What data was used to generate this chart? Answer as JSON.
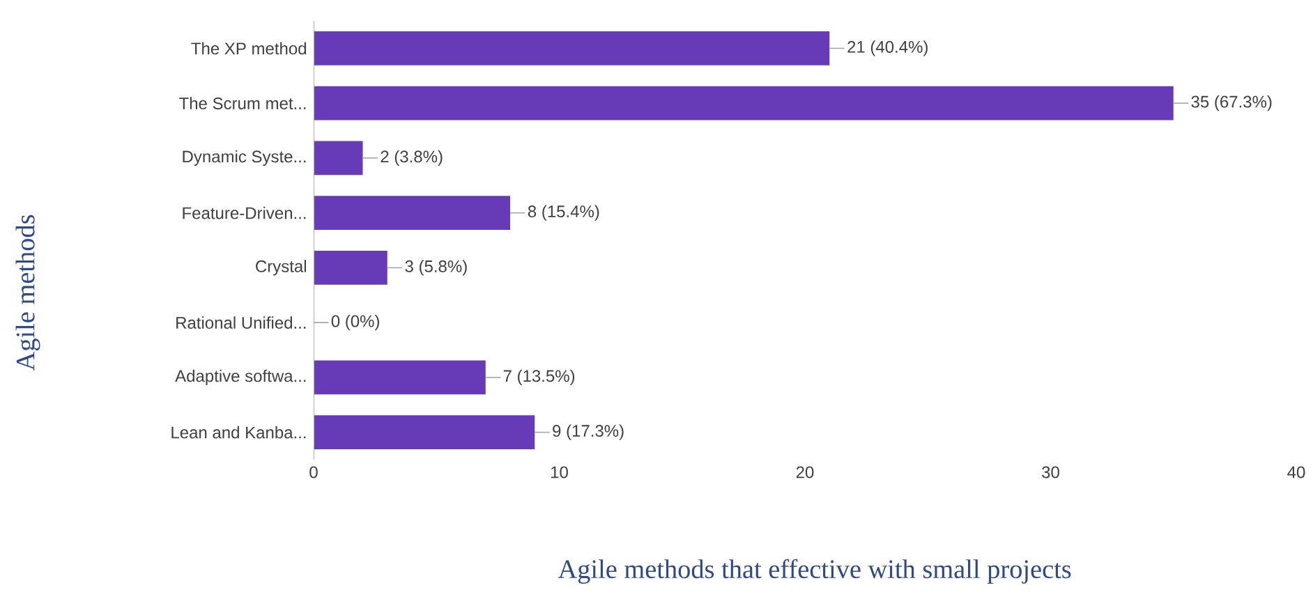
{
  "chart_data": {
    "type": "bar",
    "orientation": "horizontal",
    "xlabel": "Agile methods that effective with small projects",
    "ylabel": "Agile methods",
    "categories": [
      "The XP method",
      "The Scrum met...",
      "Dynamic Syste...",
      "Feature-Driven...",
      "Crystal",
      "Rational Unified...",
      "Adaptive softwa...",
      "Lean and Kanba..."
    ],
    "values": [
      21,
      35,
      2,
      8,
      3,
      0,
      7,
      9
    ],
    "value_labels": [
      "21 (40.4%)",
      "35 (67.3%)",
      "2 (3.8%)",
      "8 (15.4%)",
      "3 (5.8%)",
      "0 (0%)",
      "7 (13.5%)",
      "9 (17.3%)"
    ],
    "color": "#673ab7",
    "xlim": [
      0,
      40
    ],
    "xticks": [
      0,
      10,
      20,
      30,
      40
    ],
    "grid": false
  }
}
